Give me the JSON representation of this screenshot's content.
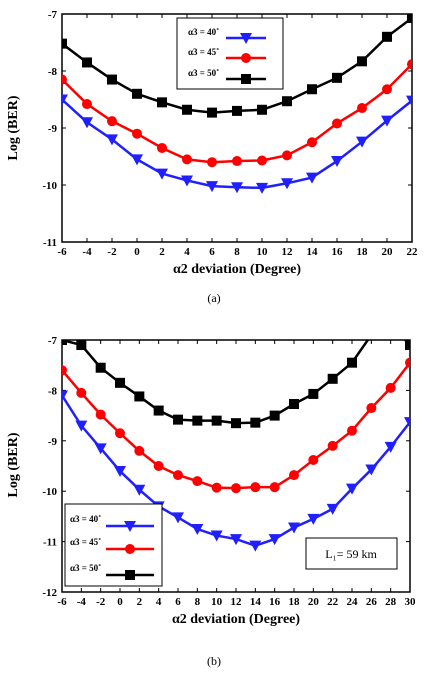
{
  "chart_data": [
    {
      "type": "line",
      "caption": "(a)",
      "xlabel": "α2 deviation (Degree)",
      "ylabel": "Log (BER)",
      "xlim": [
        -6,
        22
      ],
      "ylim": [
        -11,
        -7
      ],
      "xticks": [
        "-6",
        "-4",
        "-2",
        "0",
        "2",
        "4",
        "6",
        "8",
        "10",
        "12",
        "14",
        "16",
        "18",
        "20",
        "22"
      ],
      "yticks": [
        "-7",
        "-8",
        "-9",
        "-10",
        "-11"
      ],
      "x": [
        -6,
        -4,
        -2,
        0,
        2,
        4,
        6,
        8,
        10,
        12,
        14,
        16,
        18,
        20,
        22
      ],
      "legend_position": "top-center",
      "series": [
        {
          "name": "α3 = 40˚",
          "color": "#1f1fff",
          "marker": "triangle-down",
          "values": [
            -8.5,
            -8.9,
            -9.2,
            -9.55,
            -9.8,
            -9.92,
            -10.02,
            -10.04,
            -10.05,
            -9.97,
            -9.87,
            -9.58,
            -9.24,
            -8.87,
            -8.52
          ]
        },
        {
          "name": "α3 = 45˚",
          "color": "#ff0000",
          "marker": "circle",
          "values": [
            -8.15,
            -8.58,
            -8.88,
            -9.1,
            -9.35,
            -9.55,
            -9.6,
            -9.58,
            -9.57,
            -9.48,
            -9.25,
            -8.92,
            -8.65,
            -8.32,
            -7.88
          ]
        },
        {
          "name": "α3 = 50˚",
          "color": "#000000",
          "marker": "square",
          "values": [
            -7.52,
            -7.85,
            -8.15,
            -8.4,
            -8.55,
            -8.68,
            -8.73,
            -8.7,
            -8.68,
            -8.53,
            -8.32,
            -8.12,
            -7.83,
            -7.4,
            -7.07
          ]
        }
      ]
    },
    {
      "type": "line",
      "caption": "(b)",
      "xlabel": "α2 deviation (Degree)",
      "ylabel": "Log (BER)",
      "xlim": [
        -6,
        30
      ],
      "ylim": [
        -12,
        -7
      ],
      "xticks": [
        "-6",
        "-4",
        "-2",
        "0",
        "2",
        "4",
        "6",
        "8",
        "10",
        "12",
        "14",
        "16",
        "18",
        "20",
        "22",
        "24",
        "26",
        "28",
        "30"
      ],
      "yticks": [
        "-7",
        "-8",
        "-9",
        "-10",
        "-11",
        "-12"
      ],
      "x": [
        -6,
        -4,
        -2,
        0,
        2,
        4,
        6,
        8,
        10,
        12,
        14,
        16,
        18,
        20,
        22,
        24,
        26,
        28,
        30
      ],
      "legend_position": "bottom-left",
      "annotation": "L₁= 59 km",
      "series": [
        {
          "name": "α3 = 40˚",
          "color": "#1f1fff",
          "marker": "triangle-down",
          "values": [
            -8.1,
            -8.7,
            -9.15,
            -9.6,
            -9.97,
            -10.3,
            -10.52,
            -10.75,
            -10.88,
            -10.95,
            -11.08,
            -10.95,
            -10.72,
            -10.55,
            -10.35,
            -9.95,
            -9.57,
            -9.12,
            -8.63
          ]
        },
        {
          "name": "α3 = 45˚",
          "color": "#ff0000",
          "marker": "circle",
          "values": [
            -7.6,
            -8.05,
            -8.48,
            -8.85,
            -9.2,
            -9.5,
            -9.68,
            -9.8,
            -9.93,
            -9.94,
            -9.92,
            -9.92,
            -9.68,
            -9.38,
            -9.1,
            -8.8,
            -8.35,
            -7.95,
            -7.45
          ]
        },
        {
          "name": "α3 = 50˚",
          "color": "#000000",
          "marker": "square",
          "values": [
            -7.0,
            -7.1,
            -7.55,
            -7.85,
            -8.12,
            -8.4,
            -8.58,
            -8.6,
            -8.6,
            -8.65,
            -8.64,
            -8.5,
            -8.27,
            -8.07,
            -7.77,
            -7.45,
            -6.9,
            -6.7,
            -7.1
          ]
        }
      ]
    }
  ]
}
